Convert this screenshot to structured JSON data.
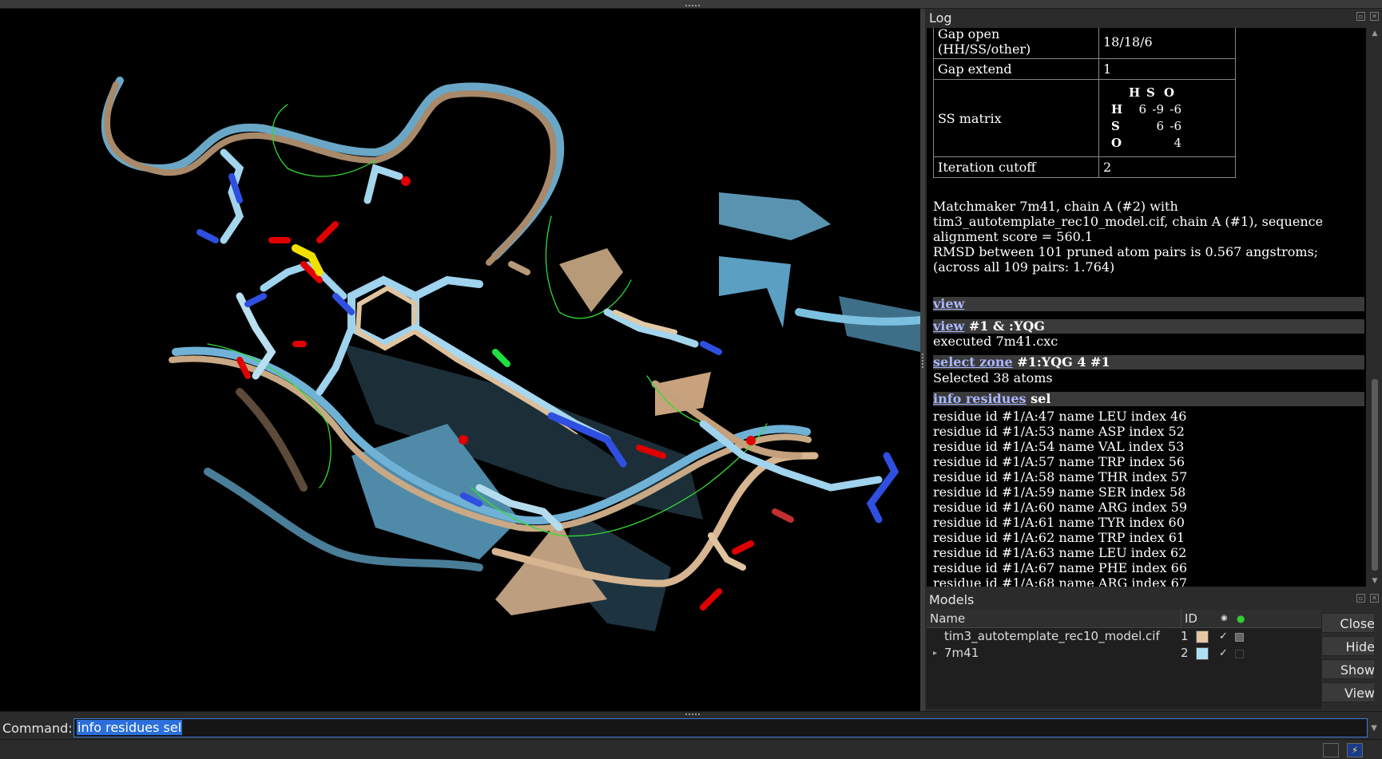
{
  "log": {
    "title": "Log",
    "params": [
      {
        "key": "Gap open (HH/SS/other)",
        "value": "18/18/6"
      },
      {
        "key": "Gap extend",
        "value": "1"
      },
      {
        "key": "SS matrix",
        "matrix": {
          "header": [
            "H",
            "S",
            "O"
          ],
          "rows": [
            {
              "label": "H",
              "values": [
                "6",
                "-9",
                "-6"
              ]
            },
            {
              "label": "S",
              "values": [
                "",
                "6",
                "-6"
              ]
            },
            {
              "label": "O",
              "values": [
                "",
                "",
                "4"
              ]
            }
          ]
        }
      },
      {
        "key": "Iteration cutoff",
        "value": "2"
      }
    ],
    "matchmaker_message": "Matchmaker 7m41, chain A (#2) with tim3_autotemplate_rec10_model.cif, chain A (#1), sequence alignment score = 560.1",
    "rmsd_line1": "RMSD between 101 pruned atom pairs is 0.567 angstroms;",
    "rmsd_line2": "(across all 109 pairs: 1.764)",
    "commands": [
      {
        "link": "view",
        "args": ""
      },
      {
        "link": "view",
        "args": "#1 & :YQG"
      },
      {
        "link": "select zone",
        "args": "#1:YQG 4 #1"
      },
      {
        "link": "info residues",
        "args": "sel"
      }
    ],
    "executed": "executed 7m41.cxc",
    "selected": "Selected 38 atoms",
    "residues": [
      "residue id #1/A:47 name LEU index 46",
      "residue id #1/A:53 name ASP index 52",
      "residue id #1/A:54 name VAL index 53",
      "residue id #1/A:57 name TRP index 56",
      "residue id #1/A:58 name THR index 57",
      "residue id #1/A:59 name SER index 58",
      "residue id #1/A:60 name ARG index 59",
      "residue id #1/A:61 name TYR index 60",
      "residue id #1/A:62 name TRP index 61",
      "residue id #1/A:63 name LEU index 62",
      "residue id #1/A:67 name PHE index 66",
      "residue id #1/A:68 name ARG index 67"
    ]
  },
  "models": {
    "title": "Models",
    "columns": {
      "name": "Name",
      "id": "ID"
    },
    "rows": [
      {
        "name": "tim3_autotemplate_rec10_model.cif",
        "id": "1",
        "color": "#e3c8a3",
        "shown": "✓",
        "expanded": false
      },
      {
        "name": "7m41",
        "id": "2",
        "color": "#aee0f2",
        "shown": "✓",
        "expanded": true
      }
    ],
    "buttons": [
      "Close",
      "Hide",
      "Show",
      "View"
    ]
  },
  "command": {
    "label": "Command:",
    "value": "info residues sel"
  },
  "colors": {
    "model1": "#d2b48c",
    "model2": "#87bfdb",
    "link": "#aab7ff",
    "selection_outline": "#33dd33"
  }
}
